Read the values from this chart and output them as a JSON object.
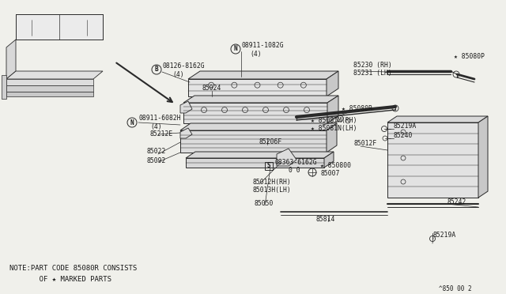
{
  "bg": "#f0f0eb",
  "lc": "#2a2a2a",
  "tc": "#1a1a1a",
  "note1": "NOTE:PART CODE 85080R CONSISTS",
  "note2": "       OF ★ MARKED PARTS",
  "page_ref": "^850 00 2",
  "fs": 6.0,
  "fs_tiny": 5.0
}
